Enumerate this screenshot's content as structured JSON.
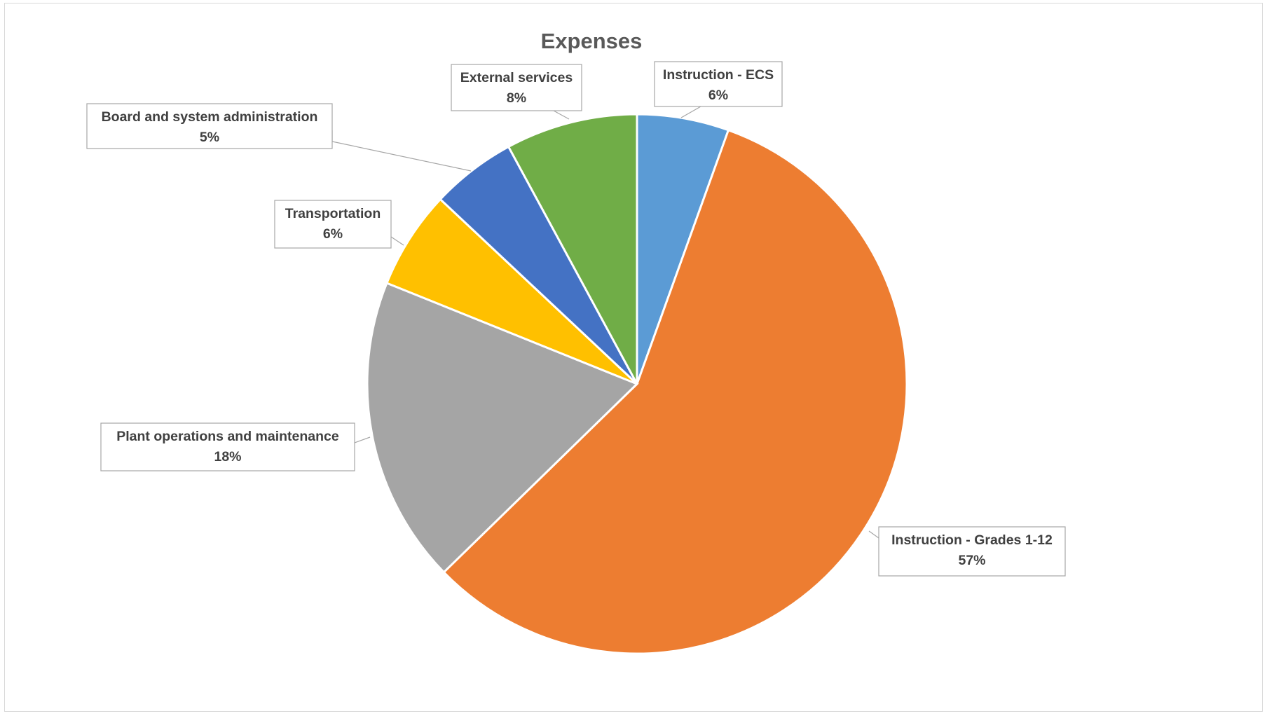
{
  "chart_data": {
    "type": "pie",
    "title": "Expenses",
    "start_angle_deg": 0,
    "direction": "clockwise",
    "slices": [
      {
        "label": "Instruction - ECS",
        "value": 5.5,
        "display": "6%",
        "color": "#5B9BD5"
      },
      {
        "label": "Instruction - Grades 1-12",
        "value": 57.2,
        "display": "57%",
        "color": "#ED7D31"
      },
      {
        "label": "Plant operations and maintenance",
        "value": 18.4,
        "display": "18%",
        "color": "#A5A5A5"
      },
      {
        "label": "Transportation",
        "value": 5.9,
        "display": "6%",
        "color": "#FFC000"
      },
      {
        "label": "Board and system administration",
        "value": 5.1,
        "display": "5%",
        "color": "#4472C4"
      },
      {
        "label": "External services",
        "value": 7.9,
        "display": "8%",
        "color": "#70AD47"
      }
    ],
    "legend": "none",
    "data_labels": "callouts with category name and percentage"
  }
}
